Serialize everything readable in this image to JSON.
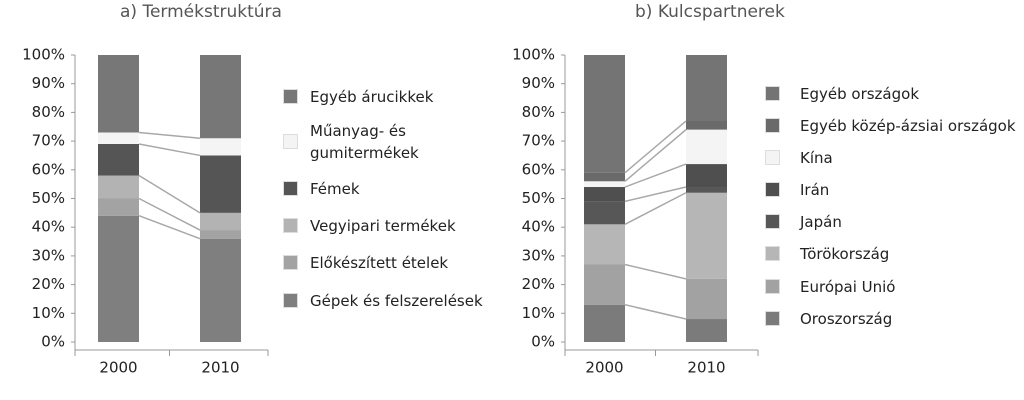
{
  "chart_data": [
    {
      "type": "bar",
      "stacked": true,
      "title": "a)  Termékstruktúra",
      "categories": [
        "2000",
        "2010"
      ],
      "series": [
        {
          "name": "Gépek és felszerelések",
          "color": "#7f7f7f",
          "values": [
            44,
            36
          ]
        },
        {
          "name": "Előkészített ételek",
          "color": "#a3a3a3",
          "values": [
            6,
            3
          ]
        },
        {
          "name": "Vegyipari termékek",
          "color": "#b3b3b3",
          "values": [
            8,
            6
          ]
        },
        {
          "name": "Fémek",
          "color": "#555555",
          "values": [
            11,
            20
          ]
        },
        {
          "name": "Műanyag- és gumitermékek",
          "color": "#f4f4f4",
          "values": [
            4,
            6
          ]
        },
        {
          "name": "Egyéb árucikkek",
          "color": "#777777",
          "values": [
            27,
            29
          ]
        }
      ],
      "ylim": [
        0,
        100
      ],
      "yticks": [
        {
          "value": 0,
          "label": "0%"
        },
        {
          "value": 10,
          "label": "10%"
        },
        {
          "value": 20,
          "label": "20%"
        },
        {
          "value": 30,
          "label": "30%"
        },
        {
          "value": 40,
          "label": "40%"
        },
        {
          "value": 50,
          "label": "50%"
        },
        {
          "value": 60,
          "label": "60%"
        },
        {
          "value": 70,
          "label": "70%"
        },
        {
          "value": 80,
          "label": "80%"
        },
        {
          "value": 90,
          "label": "90%"
        },
        {
          "value": 100,
          "label": "100%"
        }
      ]
    },
    {
      "type": "bar",
      "stacked": true,
      "title": "b)  Kulcspartnerek",
      "categories": [
        "2000",
        "2010"
      ],
      "series": [
        {
          "name": "Oroszország",
          "color": "#7b7b7b",
          "values": [
            13,
            8
          ]
        },
        {
          "name": "Európai Unió",
          "color": "#a2a2a2",
          "values": [
            14,
            14
          ]
        },
        {
          "name": "Törökország",
          "color": "#b6b6b6",
          "values": [
            14,
            30
          ]
        },
        {
          "name": "Japán",
          "color": "#575757",
          "values": [
            8,
            2
          ]
        },
        {
          "name": "Irán",
          "color": "#4f4f4f",
          "values": [
            5,
            8
          ]
        },
        {
          "name": "Kína",
          "color": "#f4f4f4",
          "values": [
            2,
            12
          ]
        },
        {
          "name": "Egyéb közép-ázsiai országok",
          "color": "#6a6a6a",
          "values": [
            3,
            3
          ]
        },
        {
          "name": "Egyéb országok",
          "color": "#747474",
          "values": [
            41,
            23
          ]
        }
      ],
      "ylim": [
        0,
        100
      ],
      "yticks": [
        {
          "value": 0,
          "label": "0%"
        },
        {
          "value": 10,
          "label": "10%"
        },
        {
          "value": 20,
          "label": "20%"
        },
        {
          "value": 30,
          "label": "30%"
        },
        {
          "value": 40,
          "label": "40%"
        },
        {
          "value": 50,
          "label": "50%"
        },
        {
          "value": 60,
          "label": "60%"
        },
        {
          "value": 70,
          "label": "70%"
        },
        {
          "value": 80,
          "label": "80%"
        },
        {
          "value": 90,
          "label": "90%"
        },
        {
          "value": 100,
          "label": "100%"
        }
      ]
    }
  ]
}
